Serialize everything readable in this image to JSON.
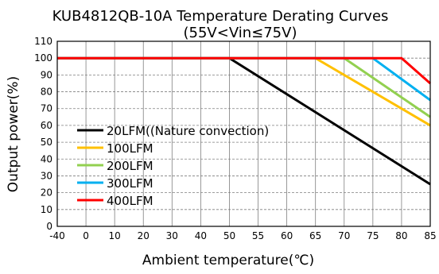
{
  "chart_data": {
    "type": "line",
    "title": "KUB4812QB-10A Temperature Derating Curves",
    "subtitle": "(55V<Vin≤75V)",
    "xlabel": "Ambient temperature(℃)",
    "ylabel": "Output power(%)",
    "x_ticks": [
      -40,
      0,
      10,
      20,
      30,
      40,
      50,
      55,
      60,
      65,
      70,
      75,
      80,
      85
    ],
    "x_tick_labels": [
      "-40",
      "0",
      "10",
      "20",
      "30",
      "40",
      "50",
      "55",
      "60",
      "65",
      "70",
      "75",
      "80",
      "85"
    ],
    "y_ticks": [
      0,
      10,
      20,
      30,
      40,
      50,
      60,
      70,
      80,
      90,
      100,
      110
    ],
    "y_tick_labels": [
      "0",
      "10",
      "20",
      "30",
      "40",
      "50",
      "60",
      "70",
      "80",
      "90",
      "100",
      "110"
    ],
    "xlim": [
      -40,
      85
    ],
    "ylim": [
      0,
      110
    ],
    "grid": "dashed horizontal, solid vertical",
    "legend_position": "middle-left",
    "series": [
      {
        "name": "20LFM((Nature convection)",
        "color": "#000000",
        "points": [
          [
            -40,
            100
          ],
          [
            50,
            100
          ],
          [
            85,
            25
          ]
        ]
      },
      {
        "name": "100LFM",
        "color": "#FFC000",
        "points": [
          [
            -40,
            100
          ],
          [
            65,
            100
          ],
          [
            85,
            60
          ]
        ]
      },
      {
        "name": "200LFM",
        "color": "#92D050",
        "points": [
          [
            -40,
            100
          ],
          [
            70,
            100
          ],
          [
            85,
            65
          ]
        ]
      },
      {
        "name": "300LFM",
        "color": "#00B0F0",
        "points": [
          [
            -40,
            100
          ],
          [
            75,
            100
          ],
          [
            85,
            75
          ]
        ]
      },
      {
        "name": "400LFM",
        "color": "#FF0000",
        "points": [
          [
            -40,
            100
          ],
          [
            80,
            100
          ],
          [
            85,
            85
          ]
        ]
      }
    ]
  }
}
